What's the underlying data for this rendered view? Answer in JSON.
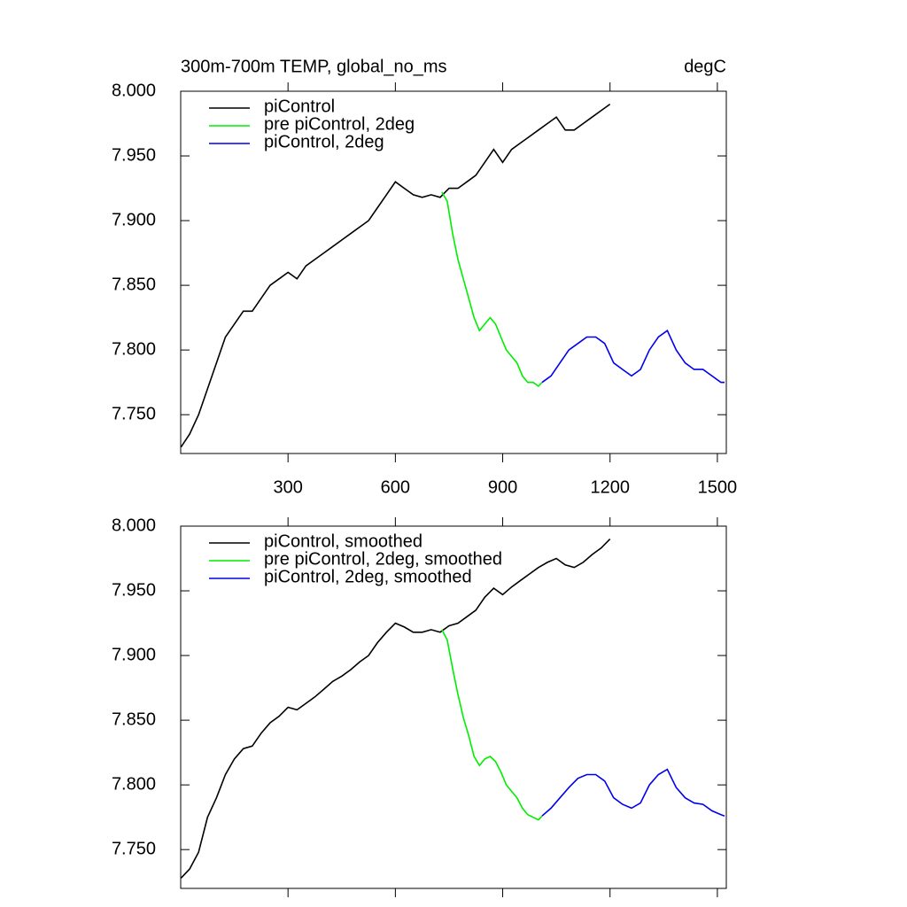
{
  "chart_data": [
    {
      "type": "line",
      "title": "300m-700m TEMP, global_no_ms",
      "units": "degC",
      "xlim": [
        0,
        1525
      ],
      "xticks": [
        300,
        600,
        900,
        1200,
        1500
      ],
      "show_xtick_labels": true,
      "ylim": [
        7.72,
        8.0
      ],
      "yticks": [
        {
          "value": 7.75,
          "label": "7.750"
        },
        {
          "value": 7.8,
          "label": "7.800"
        },
        {
          "value": 7.85,
          "label": "7.850"
        },
        {
          "value": 7.9,
          "label": "7.900"
        },
        {
          "value": 7.95,
          "label": "7.950"
        },
        {
          "value": 8.0,
          "label": "8.000"
        }
      ],
      "series": [
        {
          "name": "piControl",
          "color": "#000000",
          "x": [
            1,
            25,
            50,
            75,
            100,
            125,
            150,
            175,
            200,
            225,
            250,
            275,
            300,
            325,
            350,
            375,
            400,
            425,
            450,
            475,
            500,
            525,
            550,
            575,
            600,
            625,
            650,
            675,
            700,
            725,
            750,
            775,
            800,
            825,
            850,
            875,
            900,
            925,
            950,
            975,
            1000,
            1025,
            1050,
            1075,
            1100,
            1125,
            1150,
            1175,
            1200
          ],
          "values": [
            7.725,
            7.735,
            7.75,
            7.77,
            7.79,
            7.81,
            7.82,
            7.83,
            7.83,
            7.84,
            7.85,
            7.855,
            7.86,
            7.855,
            7.865,
            7.87,
            7.875,
            7.88,
            7.885,
            7.89,
            7.895,
            7.9,
            7.91,
            7.92,
            7.93,
            7.925,
            7.92,
            7.918,
            7.92,
            7.918,
            7.925,
            7.925,
            7.93,
            7.935,
            7.945,
            7.955,
            7.945,
            7.955,
            7.96,
            7.965,
            7.97,
            7.975,
            7.98,
            7.97,
            7.97,
            7.975,
            7.98,
            7.985,
            7.99
          ]
        },
        {
          "name": "pre piControl, 2deg",
          "color": "#00ee00",
          "x": [
            730,
            745,
            760,
            775,
            790,
            805,
            820,
            835,
            850,
            865,
            880,
            895,
            910,
            925,
            940,
            955,
            970,
            985,
            1000,
            1010
          ],
          "values": [
            7.922,
            7.915,
            7.89,
            7.87,
            7.855,
            7.84,
            7.825,
            7.815,
            7.82,
            7.825,
            7.82,
            7.81,
            7.8,
            7.795,
            7.79,
            7.78,
            7.775,
            7.775,
            7.772,
            7.775
          ]
        },
        {
          "name": "piControl, 2deg",
          "color": "#0000ee",
          "x": [
            1010,
            1035,
            1060,
            1085,
            1110,
            1135,
            1160,
            1185,
            1210,
            1235,
            1260,
            1285,
            1310,
            1335,
            1360,
            1385,
            1410,
            1435,
            1460,
            1485,
            1510,
            1520
          ],
          "values": [
            7.775,
            7.78,
            7.79,
            7.8,
            7.805,
            7.81,
            7.81,
            7.805,
            7.79,
            7.785,
            7.78,
            7.785,
            7.8,
            7.81,
            7.815,
            7.8,
            7.79,
            7.785,
            7.785,
            7.78,
            7.775,
            7.775
          ]
        }
      ]
    },
    {
      "type": "line",
      "xlim": [
        0,
        1525
      ],
      "xticks": [
        300,
        600,
        900,
        1200,
        1500
      ],
      "show_xtick_labels": false,
      "ylim": [
        7.72,
        8.0
      ],
      "yticks": [
        {
          "value": 7.75,
          "label": "7.750"
        },
        {
          "value": 7.8,
          "label": "7.800"
        },
        {
          "value": 7.85,
          "label": "7.850"
        },
        {
          "value": 7.9,
          "label": "7.900"
        },
        {
          "value": 7.95,
          "label": "7.950"
        },
        {
          "value": 8.0,
          "label": "8.000"
        }
      ],
      "series": [
        {
          "name": "piControl, smoothed",
          "color": "#000000",
          "x": [
            1,
            25,
            50,
            75,
            100,
            125,
            150,
            175,
            200,
            225,
            250,
            275,
            300,
            325,
            350,
            375,
            400,
            425,
            450,
            475,
            500,
            525,
            550,
            575,
            600,
            625,
            650,
            675,
            700,
            725,
            750,
            775,
            800,
            825,
            850,
            875,
            900,
            925,
            950,
            975,
            1000,
            1025,
            1050,
            1075,
            1100,
            1125,
            1150,
            1175,
            1200
          ],
          "values": [
            7.728,
            7.735,
            7.748,
            7.775,
            7.79,
            7.808,
            7.82,
            7.828,
            7.83,
            7.84,
            7.848,
            7.853,
            7.86,
            7.858,
            7.863,
            7.868,
            7.874,
            7.88,
            7.884,
            7.889,
            7.895,
            7.9,
            7.91,
            7.918,
            7.925,
            7.922,
            7.918,
            7.918,
            7.92,
            7.918,
            7.923,
            7.925,
            7.93,
            7.935,
            7.945,
            7.952,
            7.947,
            7.953,
            7.958,
            7.963,
            7.968,
            7.972,
            7.975,
            7.97,
            7.968,
            7.972,
            7.978,
            7.983,
            7.99
          ]
        },
        {
          "name": "pre piControl, 2deg, smoothed",
          "color": "#00ee00",
          "x": [
            730,
            745,
            760,
            775,
            790,
            805,
            820,
            835,
            850,
            865,
            880,
            895,
            910,
            925,
            940,
            955,
            970,
            985,
            1000,
            1010
          ],
          "values": [
            7.92,
            7.912,
            7.89,
            7.87,
            7.852,
            7.838,
            7.822,
            7.815,
            7.82,
            7.822,
            7.818,
            7.81,
            7.8,
            7.795,
            7.79,
            7.782,
            7.777,
            7.775,
            7.773,
            7.776
          ]
        },
        {
          "name": "piControl, 2deg, smoothed",
          "color": "#0000ee",
          "x": [
            1010,
            1035,
            1060,
            1085,
            1110,
            1135,
            1160,
            1185,
            1210,
            1235,
            1260,
            1285,
            1310,
            1335,
            1360,
            1385,
            1410,
            1435,
            1460,
            1485,
            1510,
            1520
          ],
          "values": [
            7.776,
            7.782,
            7.79,
            7.798,
            7.805,
            7.808,
            7.808,
            7.803,
            7.79,
            7.785,
            7.782,
            7.786,
            7.8,
            7.808,
            7.812,
            7.798,
            7.79,
            7.786,
            7.785,
            7.78,
            7.777,
            7.776
          ]
        }
      ]
    }
  ]
}
